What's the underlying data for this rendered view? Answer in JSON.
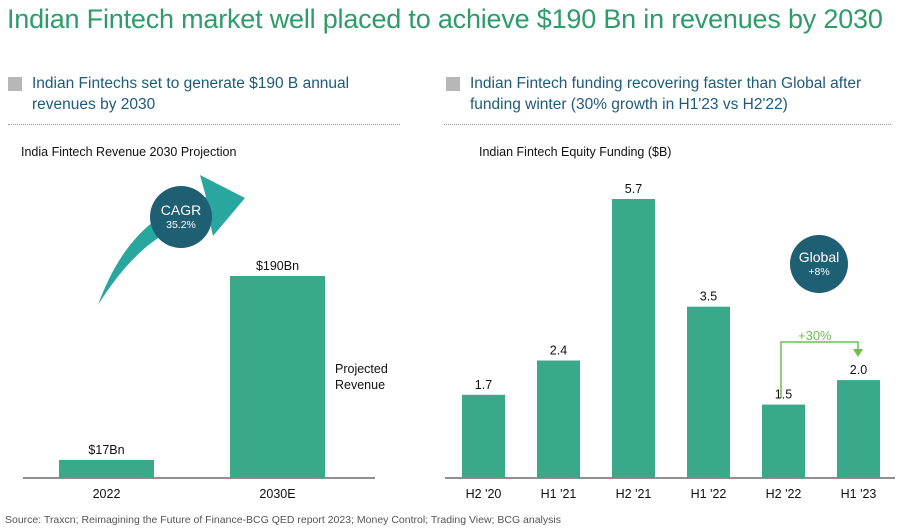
{
  "title": "Indian Fintech market well placed to achieve $190 Bn in revenues by 2030",
  "left_section": {
    "heading": "Indian Fintechs set to generate $190 B annual revenues by 2030",
    "cagr_label": "CAGR",
    "cagr_value": "35.2%",
    "projected_label_1": "Projected",
    "projected_label_2": "Revenue"
  },
  "right_section": {
    "heading": "Indian Fintech funding recovering faster than Global after funding winter (30% growth in H1'23 vs H2'22)",
    "global_label": "Global",
    "global_value": "+8%",
    "growth_label": "+30%"
  },
  "source": "Source: Traxcn; Reimagining the Future of Finance-BCG QED report 2023; Money Control; Trading View; BCG analysis",
  "colors": {
    "bar": "#3aa98a",
    "title": "#2e9b6a",
    "heading": "#1e5a7a",
    "circle": "#1f5f73",
    "growth": "#6cc04a"
  },
  "chart_data": [
    {
      "type": "bar",
      "title": "India Fintech Revenue 2030 Projection",
      "categories": [
        "2022",
        "2030E"
      ],
      "values": [
        17,
        190
      ],
      "data_labels": [
        "$17Bn",
        "$190Bn"
      ],
      "ylim": [
        0,
        190
      ]
    },
    {
      "type": "bar",
      "title": "Indian Fintech Equity Funding ($B)",
      "categories": [
        "H2 '20",
        "H1 '21",
        "H2 '21",
        "H1 '22",
        "H2 '22",
        "H1 '23"
      ],
      "values": [
        1.7,
        2.4,
        5.7,
        3.5,
        1.5,
        2.0
      ],
      "data_labels": [
        "1.7",
        "2.4",
        "5.7",
        "3.5",
        "1.5",
        "2.0"
      ],
      "ylim": [
        0,
        5.7
      ]
    }
  ]
}
